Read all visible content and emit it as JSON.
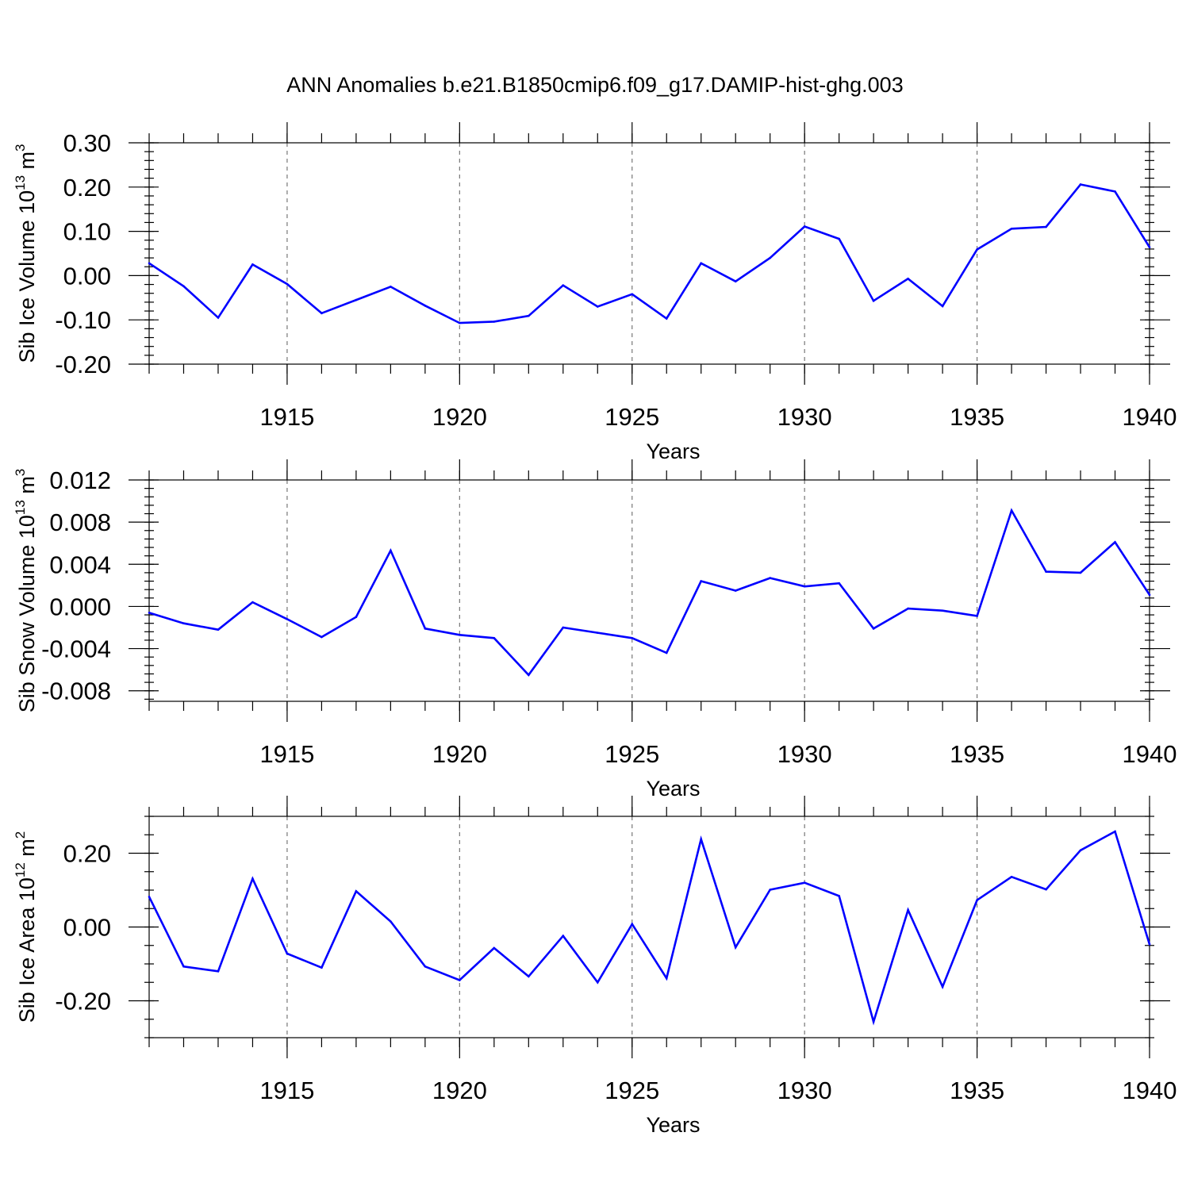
{
  "title": "ANN Anomalies b.e21.B1850cmip6.f09_g17.DAMIP-hist-ghg.003",
  "chart_data": [
    {
      "type": "line",
      "ylabel": "Sib Ice Volume 10",
      "ylabel_exp": "13",
      "ylabel_unit": " m",
      "ylabel_unit_exp": "3",
      "xlabel": "Years",
      "xlim": [
        1911,
        1940
      ],
      "ylim": [
        -0.2,
        0.3
      ],
      "yticks": [
        -0.2,
        -0.1,
        0.0,
        0.1,
        0.2,
        0.3
      ],
      "ytick_labels": [
        "-0.20",
        "-0.10",
        "0.00",
        "0.10",
        "0.20",
        "0.30"
      ],
      "yminor_step": 0.02,
      "xticks": [
        1915,
        1920,
        1925,
        1930,
        1935,
        1940
      ],
      "xtick_labels": [
        "1915",
        "1920",
        "1925",
        "1930",
        "1935",
        "1940"
      ],
      "color": "#0000ff",
      "x": [
        1911,
        1912,
        1913,
        1914,
        1915,
        1916,
        1917,
        1918,
        1919,
        1920,
        1921,
        1922,
        1923,
        1924,
        1925,
        1926,
        1927,
        1928,
        1929,
        1930,
        1931,
        1932,
        1933,
        1934,
        1935,
        1936,
        1937,
        1938,
        1939,
        1940
      ],
      "values": [
        0.028,
        -0.024,
        -0.095,
        0.025,
        -0.019,
        -0.085,
        -0.055,
        -0.025,
        -0.068,
        -0.107,
        -0.104,
        -0.091,
        -0.022,
        -0.07,
        -0.042,
        -0.097,
        0.028,
        -0.013,
        0.04,
        0.111,
        0.083,
        -0.057,
        -0.007,
        -0.069,
        0.059,
        0.106,
        0.11,
        0.206,
        0.19,
        0.064
      ]
    },
    {
      "type": "line",
      "ylabel": "Sib Snow Volume 10",
      "ylabel_exp": "13",
      "ylabel_unit": " m",
      "ylabel_unit_exp": "3",
      "xlabel": "Years",
      "xlim": [
        1911,
        1940
      ],
      "ylim": [
        -0.009,
        0.012
      ],
      "yticks": [
        -0.008,
        -0.004,
        0.0,
        0.004,
        0.008,
        0.012
      ],
      "ytick_labels": [
        "-0.008",
        "-0.004",
        "0.000",
        "0.004",
        "0.008",
        "0.012"
      ],
      "yminor_step": 0.0008,
      "xticks": [
        1915,
        1920,
        1925,
        1930,
        1935,
        1940
      ],
      "xtick_labels": [
        "1915",
        "1920",
        "1925",
        "1930",
        "1935",
        "1940"
      ],
      "color": "#0000ff",
      "x": [
        1911,
        1912,
        1913,
        1914,
        1915,
        1916,
        1917,
        1918,
        1919,
        1920,
        1921,
        1922,
        1923,
        1924,
        1925,
        1926,
        1927,
        1928,
        1929,
        1930,
        1931,
        1932,
        1933,
        1934,
        1935,
        1936,
        1937,
        1938,
        1939,
        1940
      ],
      "values": [
        -0.0006,
        -0.0016,
        -0.0022,
        0.0004,
        -0.0012,
        -0.0029,
        -0.001,
        0.0053,
        -0.0021,
        -0.0027,
        -0.003,
        -0.0065,
        -0.002,
        -0.0025,
        -0.003,
        -0.0044,
        0.0024,
        0.0015,
        0.0027,
        0.0019,
        0.0022,
        -0.0021,
        -0.0002,
        -0.0004,
        -0.0009,
        0.0091,
        0.0033,
        0.0032,
        0.0061,
        0.0011
      ]
    },
    {
      "type": "line",
      "ylabel": "Sib Ice Area 10",
      "ylabel_exp": "12",
      "ylabel_unit": " m",
      "ylabel_unit_exp": "2",
      "xlabel": "Years",
      "xlim": [
        1911,
        1940
      ],
      "ylim": [
        -0.3,
        0.3
      ],
      "yticks": [
        -0.2,
        0.0,
        0.2
      ],
      "ytick_labels": [
        "-0.20",
        "0.00",
        "0.20"
      ],
      "yminor_step": 0.05,
      "xticks": [
        1915,
        1920,
        1925,
        1930,
        1935,
        1940
      ],
      "xtick_labels": [
        "1915",
        "1920",
        "1925",
        "1930",
        "1935",
        "1940"
      ],
      "color": "#0000ff",
      "x": [
        1911,
        1912,
        1913,
        1914,
        1915,
        1916,
        1917,
        1918,
        1919,
        1920,
        1921,
        1922,
        1923,
        1924,
        1925,
        1926,
        1927,
        1928,
        1929,
        1930,
        1931,
        1932,
        1933,
        1934,
        1935,
        1936,
        1937,
        1938,
        1939,
        1940
      ],
      "values": [
        0.082,
        -0.107,
        -0.12,
        0.131,
        -0.072,
        -0.11,
        0.097,
        0.015,
        -0.107,
        -0.144,
        -0.057,
        -0.134,
        -0.024,
        -0.15,
        0.008,
        -0.139,
        0.238,
        -0.055,
        0.101,
        0.12,
        0.084,
        -0.257,
        0.046,
        -0.162,
        0.073,
        0.136,
        0.102,
        0.208,
        0.259,
        -0.047
      ]
    }
  ]
}
